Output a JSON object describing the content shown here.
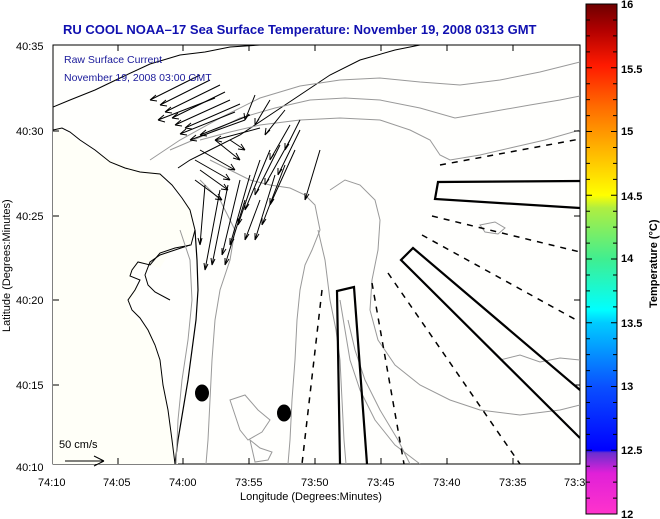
{
  "title": "RU COOL  NOAA–17  Sea Surface Temperature:  November 19, 2008 0313 GMT",
  "annotation": {
    "line1": "Raw Surface Current",
    "line2": "November 19, 2008 03:00 GMT"
  },
  "scale_arrow_label": "50 cm/s",
  "axes": {
    "xlabel": "Longitude (Degrees:Minutes)",
    "ylabel": "Latitude (Degrees:Minutes)",
    "x_ticks": [
      "74:10",
      "74:05",
      "74:00",
      "73:55",
      "73:50",
      "73:45",
      "73:40",
      "73:35",
      "73:3"
    ],
    "y_ticks": [
      "40:35",
      "40:30",
      "40:25",
      "40:20",
      "40:15",
      "40:10"
    ]
  },
  "colorbar": {
    "label": "Temperature (°C)",
    "min": 12,
    "max": 16,
    "tick_labels": [
      "16",
      "15.5",
      "15",
      "14.5",
      "14",
      "13.5",
      "13",
      "12.5",
      "12"
    ],
    "colors": [
      "#ff33cc",
      "#8a2be2",
      "#0000ff",
      "#0066ff",
      "#00ffff",
      "#40e8a0",
      "#aaf040",
      "#ffff00",
      "#ffb000",
      "#ff6600",
      "#ff1a00",
      "#b00000",
      "#700000"
    ]
  },
  "colors": {
    "title": "#1010b0",
    "coast": "#000000",
    "bathymetry": "#999999",
    "land": "#ffffff"
  }
}
